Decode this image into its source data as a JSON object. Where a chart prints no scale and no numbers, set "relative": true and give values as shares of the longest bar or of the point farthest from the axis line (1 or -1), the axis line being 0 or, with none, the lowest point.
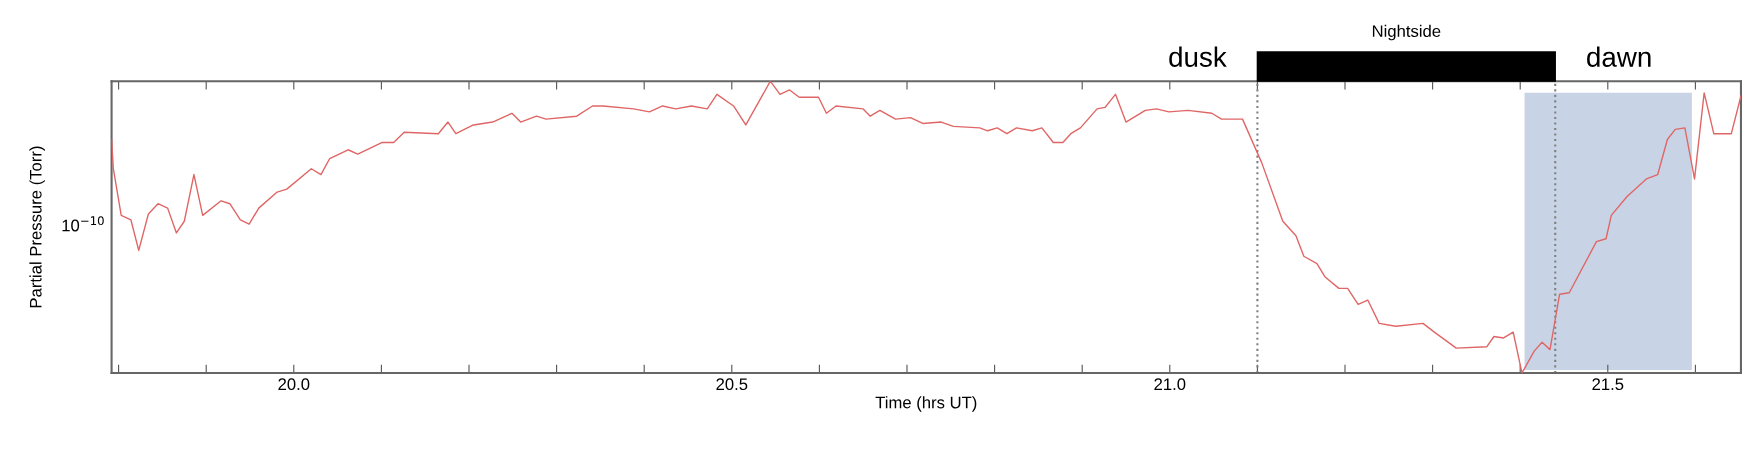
{
  "chart_data": {
    "type": "line",
    "relative": true,
    "xlabel": "Time (hrs UT)",
    "ylabel": "Partial Pressure (Torr)",
    "xlim": [
      19.792,
      21.652
    ],
    "xticks": [
      {
        "value": 19.8,
        "label": null
      },
      {
        "value": 19.9,
        "label": null
      },
      {
        "value": 20.0,
        "label": "20.0"
      },
      {
        "value": 20.1,
        "label": null
      },
      {
        "value": 20.2,
        "label": null
      },
      {
        "value": 20.3,
        "label": null
      },
      {
        "value": 20.4,
        "label": null
      },
      {
        "value": 20.5,
        "label": "20.5"
      },
      {
        "value": 20.6,
        "label": null
      },
      {
        "value": 20.7,
        "label": null
      },
      {
        "value": 20.8,
        "label": null
      },
      {
        "value": 20.9,
        "label": null
      },
      {
        "value": 21.0,
        "label": "21.0"
      },
      {
        "value": 21.1,
        "label": null
      },
      {
        "value": 21.2,
        "label": null
      },
      {
        "value": 21.3,
        "label": null
      },
      {
        "value": 21.4,
        "label": null
      },
      {
        "value": 21.5,
        "label": "21.5"
      },
      {
        "value": 21.6,
        "label": null
      }
    ],
    "series": [
      {
        "color": "#e06666",
        "x": [
          19.792,
          19.794,
          19.803,
          19.814,
          19.823,
          19.834,
          19.845,
          19.856,
          19.866,
          19.875,
          19.886,
          19.896,
          19.917,
          19.927,
          19.939,
          19.949,
          19.96,
          19.981,
          19.992,
          20.02,
          20.031,
          20.041,
          20.062,
          20.073,
          20.101,
          20.114,
          20.126,
          20.165,
          20.176,
          20.185,
          20.205,
          20.227,
          20.249,
          20.259,
          20.277,
          20.288,
          20.323,
          20.341,
          20.353,
          20.388,
          20.406,
          20.421,
          20.436,
          20.454,
          20.472,
          20.483,
          20.502,
          20.516,
          20.544,
          20.555,
          20.566,
          20.577,
          20.599,
          20.608,
          20.619,
          20.65,
          20.658,
          20.669,
          20.687,
          20.704,
          20.718,
          20.739,
          20.753,
          20.783,
          20.792,
          20.803,
          20.814,
          20.825,
          20.843,
          20.854,
          20.867,
          20.878,
          20.887,
          20.898,
          20.917,
          20.926,
          20.938,
          20.95,
          20.972,
          20.985,
          20.999,
          21.021,
          21.048,
          21.059,
          21.083,
          21.105,
          21.129,
          21.144,
          21.153,
          21.168,
          21.177,
          21.193,
          21.203,
          21.215,
          21.226,
          21.239,
          21.258,
          21.289,
          21.302,
          21.327,
          21.362,
          21.37,
          21.381,
          21.392,
          21.402,
          21.416,
          21.425,
          21.434,
          21.445,
          21.456,
          21.487,
          21.498,
          21.504,
          21.522,
          21.544,
          21.557,
          21.568,
          21.577,
          21.588,
          21.599,
          21.61,
          21.621,
          21.641,
          21.652
        ],
        "values": [
          0.8,
          0.7,
          0.54,
          0.525,
          0.42,
          0.545,
          0.58,
          0.565,
          0.48,
          0.52,
          0.68,
          0.54,
          0.59,
          0.58,
          0.525,
          0.51,
          0.565,
          0.62,
          0.63,
          0.7,
          0.68,
          0.735,
          0.765,
          0.75,
          0.79,
          0.79,
          0.825,
          0.82,
          0.86,
          0.82,
          0.85,
          0.86,
          0.89,
          0.86,
          0.88,
          0.87,
          0.88,
          0.915,
          0.915,
          0.905,
          0.895,
          0.915,
          0.905,
          0.915,
          0.905,
          0.955,
          0.915,
          0.85,
          1,
          0.955,
          0.97,
          0.945,
          0.945,
          0.89,
          0.915,
          0.905,
          0.88,
          0.9,
          0.87,
          0.875,
          0.855,
          0.86,
          0.845,
          0.84,
          0.83,
          0.84,
          0.82,
          0.84,
          0.83,
          0.84,
          0.79,
          0.79,
          0.82,
          0.84,
          0.905,
          0.91,
          0.955,
          0.86,
          0.9,
          0.905,
          0.895,
          0.9,
          0.89,
          0.87,
          0.87,
          0.72,
          0.52,
          0.47,
          0.4,
          0.375,
          0.33,
          0.29,
          0.29,
          0.235,
          0.25,
          0.17,
          0.16,
          0.17,
          0.14,
          0.085,
          0.09,
          0.125,
          0.12,
          0.14,
          0.0,
          0.075,
          0.105,
          0.08,
          0.27,
          0.275,
          0.45,
          0.46,
          0.54,
          0.605,
          0.665,
          0.68,
          0.8,
          0.835,
          0.84,
          0.665,
          0.96,
          0.82,
          0.82,
          0.95
        ]
      }
    ],
    "ref_lines": [
      {
        "axis": "x",
        "value": 21.1,
        "color": "#808080",
        "line_style": "dotted"
      },
      {
        "axis": "x",
        "value": 21.44,
        "color": "#808080",
        "line_style": "dotted"
      }
    ],
    "bands": [
      {
        "axis": "x",
        "from": 21.405,
        "to": 21.596,
        "color": "#c8d4e6"
      }
    ],
    "annotations": [
      "10$^{−10}$",
      "Nightside",
      "dusk",
      "dawn"
    ],
    "marker": "none",
    "line_style": "solid",
    "grid": false,
    "legend": false
  }
}
